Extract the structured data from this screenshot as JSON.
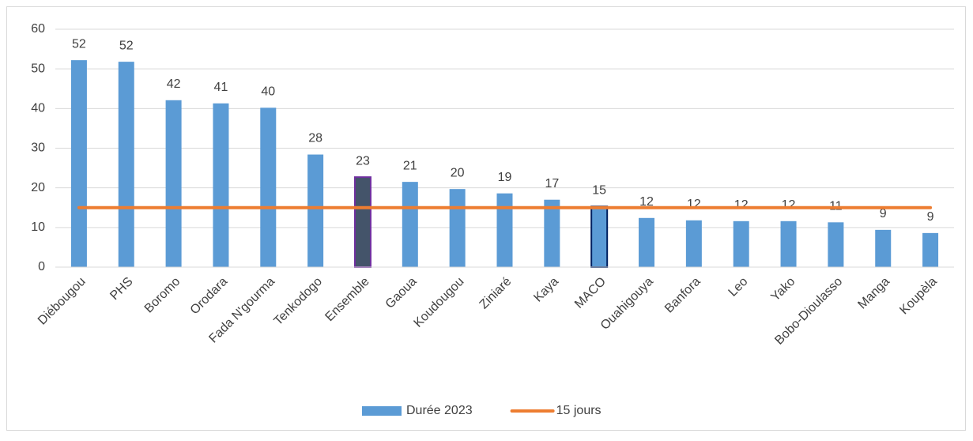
{
  "chart_data": {
    "type": "bar",
    "categories": [
      "Diébougou",
      "PHS",
      "Boromo",
      "Orodara",
      "Fada N'gourma",
      "Tenkodogo",
      "Ensemble",
      "Gaoua",
      "Koudougou",
      "Ziniaré",
      "Kaya",
      "MACO",
      "Ouahigouya",
      "Banfora",
      "Leo",
      "Yako",
      "Bobo-Dioulasso",
      "Manga",
      "Koupèla"
    ],
    "series": [
      {
        "name": "Durée 2023",
        "type": "bar",
        "color": "#5b9bd5",
        "colors": [
          "#5b9bd5",
          "#5b9bd5",
          "#5b9bd5",
          "#5b9bd5",
          "#5b9bd5",
          "#5b9bd5",
          "#44546a",
          "#5b9bd5",
          "#5b9bd5",
          "#5b9bd5",
          "#5b9bd5",
          "#5b9bd5",
          "#5b9bd5",
          "#5b9bd5",
          "#5b9bd5",
          "#5b9bd5",
          "#5b9bd5",
          "#5b9bd5",
          "#5b9bd5"
        ],
        "edge_colors": [
          null,
          null,
          null,
          null,
          null,
          null,
          "#7030a0",
          null,
          null,
          null,
          null,
          "#002060",
          null,
          null,
          null,
          null,
          null,
          null,
          null
        ],
        "values": [
          52.2,
          51.8,
          42.1,
          41.3,
          40.2,
          28.4,
          22.7,
          21.5,
          19.7,
          18.6,
          17.0,
          15.3,
          12.4,
          11.8,
          11.6,
          11.6,
          11.3,
          9.4,
          8.6
        ],
        "value_labels": [
          "52",
          "52",
          "42",
          "41",
          "40",
          "28",
          "23",
          "21",
          "20",
          "19",
          "17",
          "15",
          "12",
          "12",
          "12",
          "12",
          "11",
          "9",
          "9"
        ]
      },
      {
        "name": "15 jours",
        "type": "line",
        "color": "#ed7d31",
        "values": [
          15,
          15,
          15,
          15,
          15,
          15,
          15,
          15,
          15,
          15,
          15,
          15,
          15,
          15,
          15,
          15,
          15,
          15,
          15
        ]
      }
    ],
    "ylim": [
      0,
      60
    ],
    "yticks": [
      0,
      10,
      20,
      30,
      40,
      50,
      60
    ],
    "grid": true,
    "legend": "bottom"
  }
}
